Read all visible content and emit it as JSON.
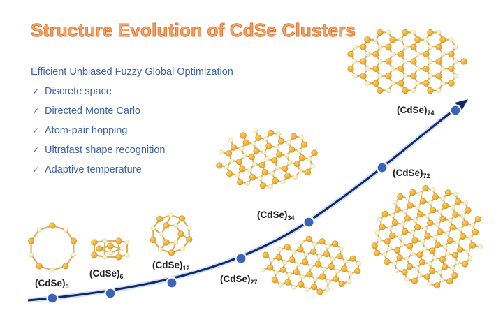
{
  "title": "Structure Evolution of CdSe Clusters",
  "subtitle": "Efficient Unbiased Fuzzy Global Optimization",
  "check_glyph": "✓",
  "features": [
    "Discrete space",
    "Directed Monte Carlo",
    "Atom-pair hopping",
    "Ultrafast shape recognition",
    "Adaptive temperature"
  ],
  "clusters": [
    {
      "base": "(CdSe)",
      "n": "5"
    },
    {
      "base": "(CdSe)",
      "n": "6"
    },
    {
      "base": "(CdSe)",
      "n": "12"
    },
    {
      "base": "(CdSe)",
      "n": "27"
    },
    {
      "base": "(CdSe)",
      "n": "34"
    },
    {
      "base": "(CdSe)",
      "n": "72"
    },
    {
      "base": "(CdSe)",
      "n": "74"
    }
  ],
  "colors": {
    "title": "#f5a26a",
    "text": "#3e62a8",
    "curve": "#0d2a6e",
    "node": "#3a64b8",
    "cd_atom": "#e8a020",
    "se_atom": "#f2e6b0",
    "bond": "#d8b060"
  }
}
